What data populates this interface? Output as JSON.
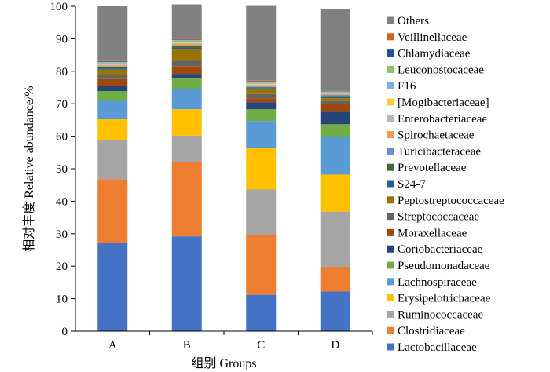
{
  "chart_data": {
    "type": "stacked-bar",
    "title": "",
    "xlabel": "组别 Groups",
    "ylabel": "相对丰度 Relative abundance/%",
    "ylim": [
      0,
      100
    ],
    "yticks": [
      0,
      10,
      20,
      30,
      40,
      50,
      60,
      70,
      80,
      90,
      100
    ],
    "grid": false,
    "legend_position": "right",
    "categories": [
      "A",
      "B",
      "C",
      "D"
    ],
    "series": [
      {
        "name": "Lactobacillaceae",
        "color": "#4472C4",
        "values": [
          27.2,
          29.2,
          11.2,
          12.2
        ]
      },
      {
        "name": "Clostridiaceae",
        "color": "#ED7D31",
        "values": [
          19.6,
          22.9,
          18.4,
          7.6
        ]
      },
      {
        "name": "Ruminococcaceae",
        "color": "#A5A5A5",
        "values": [
          12.0,
          8.1,
          14.0,
          17.0
        ]
      },
      {
        "name": "Erysipelotrichaceae",
        "color": "#FFC000",
        "values": [
          6.5,
          8.1,
          12.9,
          11.4
        ]
      },
      {
        "name": "Lachnospiraceae",
        "color": "#5B9BD5",
        "values": [
          5.6,
          6.2,
          8.2,
          11.7
        ]
      },
      {
        "name": "Pseudomonadaceae",
        "color": "#70AD47",
        "values": [
          3.0,
          3.5,
          3.6,
          3.8
        ]
      },
      {
        "name": "Coriobacteriaceae",
        "color": "#264478",
        "values": [
          1.5,
          1.2,
          2.2,
          3.8
        ]
      },
      {
        "name": "Moraxellaceae",
        "color": "#9E480E",
        "values": [
          2.2,
          2.4,
          1.2,
          2.4
        ]
      },
      {
        "name": "Streptococcaceae",
        "color": "#636363",
        "values": [
          1.2,
          1.6,
          1.3,
          0.9
        ]
      },
      {
        "name": "Peptostreptococcaceae",
        "color": "#997300",
        "values": [
          1.7,
          3.5,
          1.3,
          0.9
        ]
      },
      {
        "name": "S24-7",
        "color": "#255E91",
        "values": [
          0.4,
          0.6,
          0.4,
          0.4
        ]
      },
      {
        "name": "Prevotellaceae",
        "color": "#43682B",
        "values": [
          0.3,
          0.4,
          0.3,
          0.3
        ]
      },
      {
        "name": "Turicibacteraceae",
        "color": "#698ED0",
        "values": [
          0.3,
          0.3,
          0.3,
          0.3
        ]
      },
      {
        "name": "Spirochaetaceae",
        "color": "#F1975A",
        "values": [
          0.3,
          0.4,
          0.3,
          0.3
        ]
      },
      {
        "name": "Enterobacteriaceae",
        "color": "#B7B7B7",
        "values": [
          0.3,
          0.3,
          0.3,
          0.2
        ]
      },
      {
        "name": "[Mogibacteriaceae]",
        "color": "#FFCD33",
        "values": [
          0.3,
          0.3,
          0.3,
          0.2
        ]
      },
      {
        "name": "F16",
        "color": "#7CAFDD",
        "values": [
          0.3,
          0.4,
          0.3,
          0.2
        ]
      },
      {
        "name": "Leuconostocaceae",
        "color": "#8CC168",
        "values": [
          0.2,
          0.3,
          0.2,
          0.2
        ]
      },
      {
        "name": "Chlamydiaceae",
        "color": "#264E9C",
        "values": [
          0.2,
          0.2,
          0.2,
          0.1
        ]
      },
      {
        "name": "Veillinellaceae",
        "color": "#D9601E",
        "values": [
          0.2,
          0.2,
          0.2,
          0.1
        ]
      },
      {
        "name": "Others",
        "color": "#808080",
        "values": [
          16.7,
          10.5,
          23.0,
          25.1
        ]
      }
    ]
  }
}
